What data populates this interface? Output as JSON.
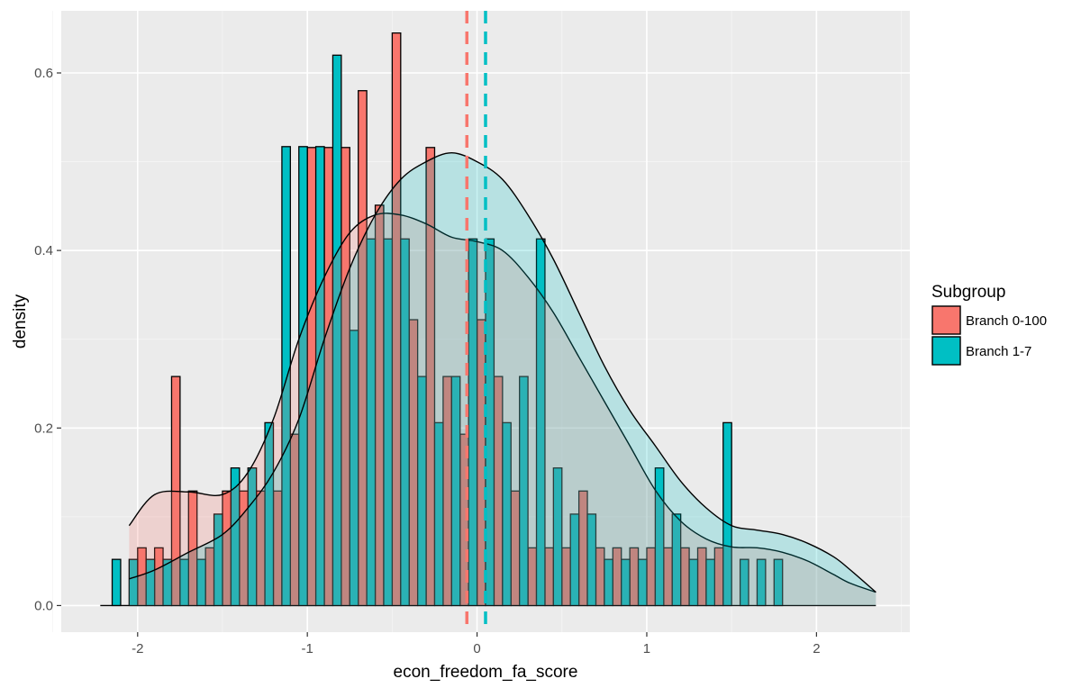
{
  "chart_data": {
    "type": "histogram",
    "xlabel": "econ_freedom_fa_score",
    "ylabel": "density",
    "xlim": [
      -2.45,
      2.55
    ],
    "ylim": [
      -0.03,
      0.67
    ],
    "grid": true,
    "x_ticks": [
      -2,
      -1,
      0,
      1,
      2
    ],
    "x_tick_labels": [
      "-2",
      "-1",
      "0",
      "1",
      "2"
    ],
    "y_ticks": [
      0.0,
      0.2,
      0.4,
      0.6
    ],
    "y_tick_labels": [
      "0.0",
      "0.2",
      "0.4",
      "0.6"
    ],
    "legend": {
      "title": "Subgroup",
      "position": "right"
    },
    "bin_edges": [
      -2.15,
      -2.05,
      -1.95,
      -1.85,
      -1.75,
      -1.65,
      -1.55,
      -1.45,
      -1.35,
      -1.25,
      -1.15,
      -1.05,
      -0.95,
      -0.85,
      -0.75,
      -0.65,
      -0.55,
      -0.45,
      -0.35,
      -0.25,
      -0.15,
      -0.05,
      0.05,
      0.15,
      0.25,
      0.35,
      0.45,
      0.55,
      0.65,
      0.75,
      0.85,
      0.95,
      1.05,
      1.15,
      1.25,
      1.35,
      1.45,
      1.55,
      1.65,
      1.75,
      1.85,
      1.95,
      2.05,
      2.15,
      2.25,
      2.35
    ],
    "series": [
      {
        "name": "Branch 0-100",
        "color": "#F8766D",
        "bar_values": [
          0,
          0.065,
          0.065,
          0.258,
          0.129,
          0.065,
          0.129,
          0.129,
          0.129,
          0.129,
          0.193,
          0.516,
          0.516,
          0.516,
          0.58,
          0.451,
          0.645,
          0.322,
          0.516,
          0.258,
          0.193,
          0.322,
          0.258,
          0.129,
          0.065,
          0.065,
          0.065,
          0.129,
          0.065,
          0.065,
          0.065,
          0.065,
          0.065,
          0.065,
          0.065,
          0.065,
          0,
          0,
          0,
          0,
          0,
          0,
          0,
          0,
          0
        ],
        "mean_line_x": -0.06,
        "density_x": [
          -2.05,
          -1.9,
          -1.7,
          -1.5,
          -1.35,
          -1.2,
          -1.05,
          -0.9,
          -0.75,
          -0.6,
          -0.45,
          -0.3,
          -0.15,
          0.0,
          0.15,
          0.3,
          0.45,
          0.6,
          0.75,
          0.9,
          1.05,
          1.2,
          1.35,
          1.5,
          1.65,
          1.8,
          1.95,
          2.1,
          2.2,
          2.35
        ],
        "density_y": [
          0.09,
          0.125,
          0.128,
          0.125,
          0.15,
          0.21,
          0.3,
          0.37,
          0.42,
          0.44,
          0.44,
          0.43,
          0.415,
          0.41,
          0.4,
          0.37,
          0.33,
          0.28,
          0.23,
          0.18,
          0.13,
          0.095,
          0.075,
          0.066,
          0.065,
          0.06,
          0.05,
          0.035,
          0.025,
          0.015
        ]
      },
      {
        "name": "Branch 1-7",
        "color": "#00BFC4",
        "bar_values": [
          0.052,
          0.052,
          0.052,
          0.052,
          0.052,
          0.052,
          0.103,
          0.155,
          0.155,
          0.206,
          0.517,
          0.517,
          0.517,
          0.62,
          0.31,
          0.413,
          0.413,
          0.413,
          0.258,
          0.206,
          0.258,
          0.413,
          0.413,
          0.206,
          0.258,
          0.413,
          0.155,
          0.103,
          0.103,
          0.052,
          0.052,
          0.052,
          0.155,
          0.103,
          0.052,
          0.052,
          0.206,
          0.052,
          0.052,
          0.052,
          0,
          0,
          0,
          0,
          0
        ],
        "mean_line_x": 0.05,
        "density_x": [
          -2.05,
          -1.9,
          -1.7,
          -1.5,
          -1.35,
          -1.2,
          -1.05,
          -0.9,
          -0.75,
          -0.6,
          -0.45,
          -0.3,
          -0.15,
          0.0,
          0.15,
          0.3,
          0.45,
          0.6,
          0.75,
          0.9,
          1.05,
          1.2,
          1.35,
          1.5,
          1.65,
          1.8,
          1.95,
          2.1,
          2.2,
          2.35
        ],
        "density_y": [
          0.03,
          0.04,
          0.06,
          0.08,
          0.11,
          0.15,
          0.21,
          0.3,
          0.38,
          0.44,
          0.48,
          0.5,
          0.51,
          0.5,
          0.48,
          0.44,
          0.39,
          0.33,
          0.27,
          0.22,
          0.18,
          0.14,
          0.11,
          0.09,
          0.085,
          0.08,
          0.07,
          0.055,
          0.04,
          0.015
        ]
      }
    ]
  }
}
